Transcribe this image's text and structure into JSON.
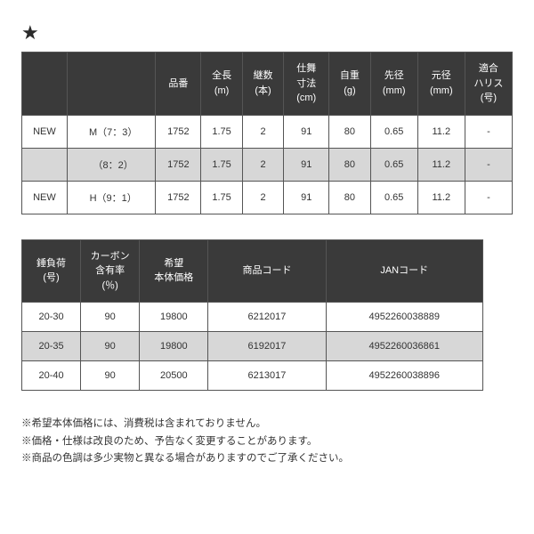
{
  "star": "★",
  "table1": {
    "headers": [
      "",
      "",
      "品番",
      "全長\n(m)",
      "継数\n(本)",
      "仕舞\n寸法\n(cm)",
      "自重\n(g)",
      "先径\n(mm)",
      "元径\n(mm)",
      "適合\nハリス\n(号)"
    ],
    "rows": [
      {
        "alt": false,
        "cells": [
          "NEW",
          "M（7：3）",
          "1752",
          "1.75",
          "2",
          "91",
          "80",
          "0.65",
          "11.2",
          "-"
        ]
      },
      {
        "alt": true,
        "cells": [
          "",
          "（8：2）",
          "1752",
          "1.75",
          "2",
          "91",
          "80",
          "0.65",
          "11.2",
          "-"
        ]
      },
      {
        "alt": false,
        "cells": [
          "NEW",
          "H（9：1）",
          "1752",
          "1.75",
          "2",
          "91",
          "80",
          "0.65",
          "11.2",
          "-"
        ]
      }
    ]
  },
  "table2": {
    "headers": [
      "錘負荷\n(号)",
      "カーボン\n含有率\n(％)",
      "希望\n本体価格",
      "商品コード",
      "JANコード"
    ],
    "rows": [
      {
        "alt": false,
        "cells": [
          "20-30",
          "90",
          "19800",
          "6212017",
          "4952260038889"
        ]
      },
      {
        "alt": true,
        "cells": [
          "20-35",
          "90",
          "19800",
          "6192017",
          "4952260036861"
        ]
      },
      {
        "alt": false,
        "cells": [
          "20-40",
          "90",
          "20500",
          "6213017",
          "4952260038896"
        ]
      }
    ]
  },
  "notes": [
    "※希望本体価格には、消費税は含まれておりません。",
    "※価格・仕様は改良のため、予告なく変更することがあります。",
    "※商品の色調は多少実物と異なる場合がありますのでご了承ください。"
  ]
}
